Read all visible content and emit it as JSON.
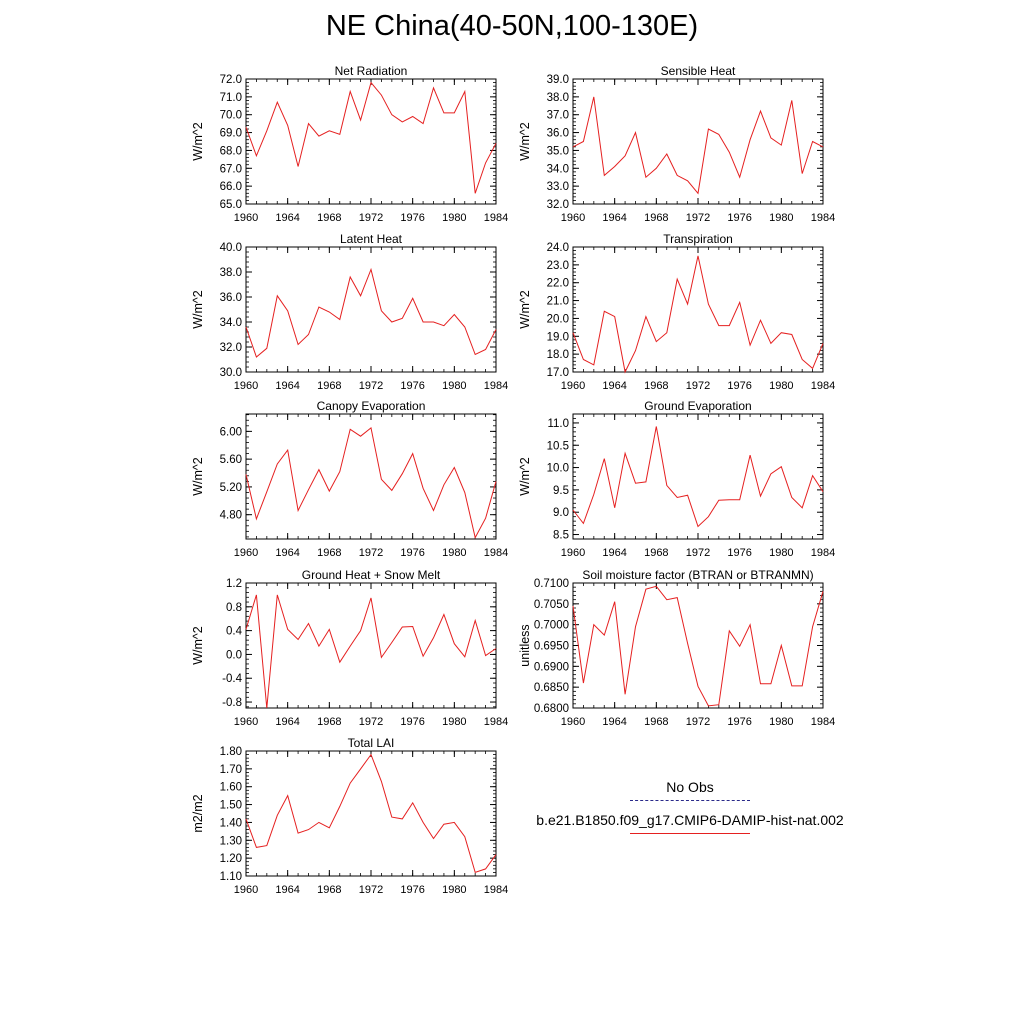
{
  "title": "NE China(40-50N,100-130E)",
  "legend": {
    "obs_label": "No Obs",
    "model_label": "b.e21.B1850.f09_g17.CMIP6-DAMIP-hist-nat.002",
    "obs_color": "#2a2a8a",
    "model_color": "#e52020"
  },
  "chart_data": [
    {
      "type": "line",
      "title": "Net Radiation",
      "ylabel": "W/m^2",
      "xlim": [
        1960,
        1984
      ],
      "xticks": [
        1960,
        1964,
        1968,
        1972,
        1976,
        1980,
        1984
      ],
      "ylim": [
        65.0,
        72.0
      ],
      "yticks": [
        "65.0",
        "66.0",
        "67.0",
        "68.0",
        "69.0",
        "70.0",
        "71.0",
        "72.0"
      ],
      "x": [
        1960,
        1961,
        1962,
        1963,
        1964,
        1965,
        1966,
        1967,
        1968,
        1969,
        1970,
        1971,
        1972,
        1973,
        1974,
        1975,
        1976,
        1977,
        1978,
        1979,
        1980,
        1981,
        1982,
        1983,
        1984
      ],
      "values": [
        69.3,
        67.7,
        69.1,
        70.7,
        69.4,
        67.1,
        69.5,
        68.8,
        69.1,
        68.9,
        71.3,
        69.7,
        71.8,
        71.1,
        70.0,
        69.6,
        69.9,
        69.5,
        71.5,
        70.1,
        70.1,
        71.3,
        65.6,
        67.3,
        68.4
      ]
    },
    {
      "type": "line",
      "title": "Sensible Heat",
      "ylabel": "W/m^2",
      "xlim": [
        1960,
        1984
      ],
      "xticks": [
        1960,
        1964,
        1968,
        1972,
        1976,
        1980,
        1984
      ],
      "ylim": [
        32.0,
        39.0
      ],
      "yticks": [
        "32.0",
        "33.0",
        "34.0",
        "35.0",
        "36.0",
        "37.0",
        "38.0",
        "39.0"
      ],
      "x": [
        1960,
        1961,
        1962,
        1963,
        1964,
        1965,
        1966,
        1967,
        1968,
        1969,
        1970,
        1971,
        1972,
        1973,
        1974,
        1975,
        1976,
        1977,
        1978,
        1979,
        1980,
        1981,
        1982,
        1983,
        1984
      ],
      "values": [
        35.2,
        35.5,
        38.0,
        33.6,
        34.1,
        34.7,
        36.0,
        33.5,
        34.0,
        34.8,
        33.6,
        33.3,
        32.6,
        36.2,
        35.9,
        34.9,
        33.5,
        35.6,
        37.2,
        35.7,
        35.3,
        37.8,
        33.7,
        35.5,
        35.2
      ]
    },
    {
      "type": "line",
      "title": "Latent Heat",
      "ylabel": "W/m^2",
      "xlim": [
        1960,
        1984
      ],
      "xticks": [
        1960,
        1964,
        1968,
        1972,
        1976,
        1980,
        1984
      ],
      "ylim": [
        30.0,
        40.0
      ],
      "yticks": [
        "30.0",
        "32.0",
        "34.0",
        "36.0",
        "38.0",
        "40.0"
      ],
      "x": [
        1960,
        1961,
        1962,
        1963,
        1964,
        1965,
        1966,
        1967,
        1968,
        1969,
        1970,
        1971,
        1972,
        1973,
        1974,
        1975,
        1976,
        1977,
        1978,
        1979,
        1980,
        1981,
        1982,
        1983,
        1984
      ],
      "values": [
        33.6,
        31.2,
        31.9,
        36.1,
        34.9,
        32.2,
        33.0,
        35.2,
        34.8,
        34.2,
        37.6,
        36.1,
        38.2,
        34.9,
        34.0,
        34.3,
        35.9,
        34.0,
        34.0,
        33.7,
        34.6,
        33.6,
        31.4,
        31.8,
        33.4
      ]
    },
    {
      "type": "line",
      "title": "Transpiration",
      "ylabel": "W/m^2",
      "xlim": [
        1960,
        1984
      ],
      "xticks": [
        1960,
        1964,
        1968,
        1972,
        1976,
        1980,
        1984
      ],
      "ylim": [
        17.0,
        24.0
      ],
      "yticks": [
        "17.0",
        "18.0",
        "19.0",
        "20.0",
        "21.0",
        "22.0",
        "23.0",
        "24.0"
      ],
      "x": [
        1960,
        1961,
        1962,
        1963,
        1964,
        1965,
        1966,
        1967,
        1968,
        1969,
        1970,
        1971,
        1972,
        1973,
        1974,
        1975,
        1976,
        1977,
        1978,
        1979,
        1980,
        1981,
        1982,
        1983,
        1984
      ],
      "values": [
        19.2,
        17.7,
        17.4,
        20.4,
        20.1,
        17.0,
        18.2,
        20.1,
        18.7,
        19.2,
        22.2,
        20.8,
        23.5,
        20.8,
        19.6,
        19.6,
        20.9,
        18.5,
        19.9,
        18.6,
        19.2,
        19.1,
        17.7,
        17.2,
        18.6
      ]
    },
    {
      "type": "line",
      "title": "Canopy Evaporation",
      "ylabel": "W/m^2",
      "xlim": [
        1960,
        1984
      ],
      "xticks": [
        1960,
        1964,
        1968,
        1972,
        1976,
        1980,
        1984
      ],
      "ylim": [
        4.45,
        6.25
      ],
      "yticks": [
        "4.80",
        "5.20",
        "5.60",
        "6.00"
      ],
      "x": [
        1960,
        1961,
        1962,
        1963,
        1964,
        1965,
        1966,
        1967,
        1968,
        1969,
        1970,
        1971,
        1972,
        1973,
        1974,
        1975,
        1976,
        1977,
        1978,
        1979,
        1980,
        1981,
        1982,
        1983,
        1984
      ],
      "values": [
        5.38,
        4.74,
        5.13,
        5.53,
        5.73,
        4.86,
        5.16,
        5.45,
        5.14,
        5.42,
        6.03,
        5.93,
        6.05,
        5.31,
        5.15,
        5.39,
        5.68,
        5.18,
        4.86,
        5.23,
        5.48,
        5.12,
        4.47,
        4.75,
        5.28
      ]
    },
    {
      "type": "line",
      "title": "Ground Evaporation",
      "ylabel": "W/m^2",
      "xlim": [
        1960,
        1984
      ],
      "xticks": [
        1960,
        1964,
        1968,
        1972,
        1976,
        1980,
        1984
      ],
      "ylim": [
        8.4,
        11.2
      ],
      "yticks": [
        "8.5",
        "9.0",
        "9.5",
        "10.0",
        "10.5",
        "11.0"
      ],
      "x": [
        1960,
        1961,
        1962,
        1963,
        1964,
        1965,
        1966,
        1967,
        1968,
        1969,
        1970,
        1971,
        1972,
        1973,
        1974,
        1975,
        1976,
        1977,
        1978,
        1979,
        1980,
        1981,
        1982,
        1983,
        1984
      ],
      "values": [
        9.05,
        8.75,
        9.4,
        10.2,
        9.1,
        10.32,
        9.65,
        9.68,
        10.92,
        9.6,
        9.33,
        9.38,
        8.68,
        8.9,
        9.27,
        9.28,
        9.28,
        10.28,
        9.36,
        9.86,
        10.02,
        9.33,
        9.1,
        9.82,
        9.46
      ]
    },
    {
      "type": "line",
      "title": "Ground Heat + Snow Melt",
      "ylabel": "W/m^2",
      "xlim": [
        1960,
        1984
      ],
      "xticks": [
        1960,
        1964,
        1968,
        1972,
        1976,
        1980,
        1984
      ],
      "ylim": [
        -0.9,
        1.2
      ],
      "yticks": [
        "-0.8",
        "-0.4",
        "0.0",
        "0.4",
        "0.8",
        "1.2"
      ],
      "x": [
        1960,
        1961,
        1962,
        1963,
        1964,
        1965,
        1966,
        1967,
        1968,
        1969,
        1970,
        1971,
        1972,
        1973,
        1974,
        1975,
        1976,
        1977,
        1978,
        1979,
        1980,
        1981,
        1982,
        1983,
        1984
      ],
      "values": [
        0.42,
        1.0,
        -0.9,
        1.0,
        0.42,
        0.25,
        0.52,
        0.14,
        0.42,
        -0.13,
        0.14,
        0.4,
        0.95,
        -0.05,
        0.2,
        0.46,
        0.47,
        -0.03,
        0.28,
        0.67,
        0.18,
        -0.04,
        0.57,
        -0.02,
        0.1
      ]
    },
    {
      "type": "line",
      "title": "Soil moisture factor (BTRAN or BTRANMN)",
      "ylabel": "unitless",
      "xlim": [
        1960,
        1984
      ],
      "xticks": [
        1960,
        1964,
        1968,
        1972,
        1976,
        1980,
        1984
      ],
      "ylim": [
        0.68,
        0.71
      ],
      "yticks": [
        "0.6800",
        "0.6850",
        "0.6900",
        "0.6950",
        "0.7000",
        "0.7050",
        "0.7100"
      ],
      "x": [
        1960,
        1961,
        1962,
        1963,
        1964,
        1965,
        1966,
        1967,
        1968,
        1969,
        1970,
        1971,
        1972,
        1973,
        1974,
        1975,
        1976,
        1977,
        1978,
        1979,
        1980,
        1981,
        1982,
        1983,
        1984
      ],
      "values": [
        0.7045,
        0.686,
        0.7,
        0.6975,
        0.7055,
        0.6833,
        0.6995,
        0.7085,
        0.7092,
        0.706,
        0.7065,
        0.6955,
        0.6852,
        0.6805,
        0.6808,
        0.6985,
        0.6948,
        0.7,
        0.6858,
        0.6858,
        0.695,
        0.6853,
        0.6853,
        0.6995,
        0.708
      ]
    },
    {
      "type": "line",
      "title": "Total LAI",
      "ylabel": "m2/m2",
      "xlim": [
        1960,
        1984
      ],
      "xticks": [
        1960,
        1964,
        1968,
        1972,
        1976,
        1980,
        1984
      ],
      "ylim": [
        1.1,
        1.8
      ],
      "yticks": [
        "1.10",
        "1.20",
        "1.30",
        "1.40",
        "1.50",
        "1.60",
        "1.70",
        "1.80"
      ],
      "x": [
        1960,
        1961,
        1962,
        1963,
        1964,
        1965,
        1966,
        1967,
        1968,
        1969,
        1970,
        1971,
        1972,
        1973,
        1974,
        1975,
        1976,
        1977,
        1978,
        1979,
        1980,
        1981,
        1982,
        1983,
        1984
      ],
      "values": [
        1.42,
        1.26,
        1.27,
        1.44,
        1.55,
        1.34,
        1.36,
        1.4,
        1.37,
        1.49,
        1.62,
        1.7,
        1.78,
        1.63,
        1.43,
        1.42,
        1.51,
        1.4,
        1.31,
        1.39,
        1.4,
        1.32,
        1.12,
        1.14,
        1.22
      ]
    }
  ]
}
